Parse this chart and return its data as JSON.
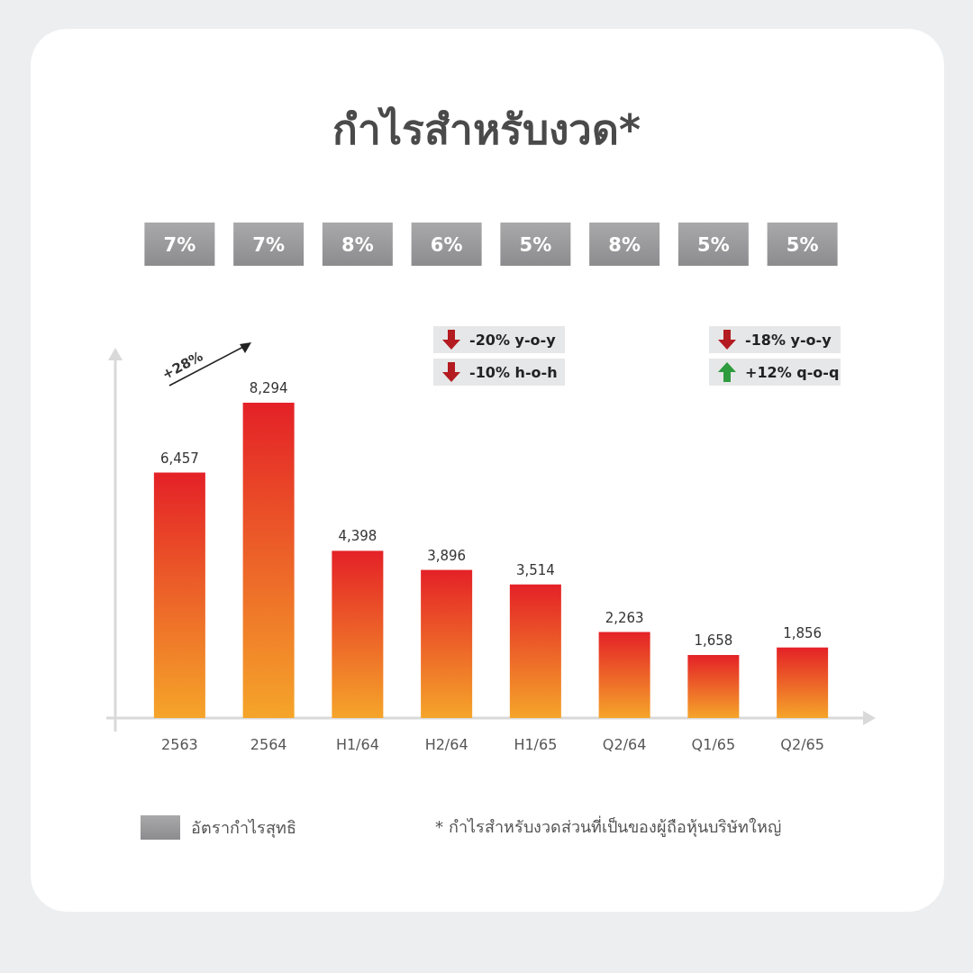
{
  "chart_data": {
    "type": "bar",
    "title": "กำไรสำหรับงวด*",
    "categories": [
      "2563",
      "2564",
      "H1/64",
      "H2/64",
      "H1/65",
      "Q2/64",
      "Q1/65",
      "Q2/65"
    ],
    "series": [
      {
        "color": "#e42127",
        "values": [
          6457,
          8294,
          4398,
          3896,
          3514,
          2263,
          1658,
          1856
        ],
        "value_labels": [
          "6,457",
          "8,294",
          "4,398",
          "3,896",
          "3,514",
          "2,263",
          "1,658",
          "1,856"
        ]
      }
    ],
    "annotations": [
      "7%",
      "7%",
      "8%",
      "6%",
      "5%",
      "8%",
      "5%",
      "5%",
      "+28%",
      "-20% y-o-y",
      "-10% h-o-h",
      "-18% y-o-y",
      "+12% q-o-q",
      "อัตรากำไรสุทธิ",
      "* กำไรสำหรับงวดส่วนที่เป็นของผู้ถือหุ้นบริษัทใหญ่"
    ]
  }
}
